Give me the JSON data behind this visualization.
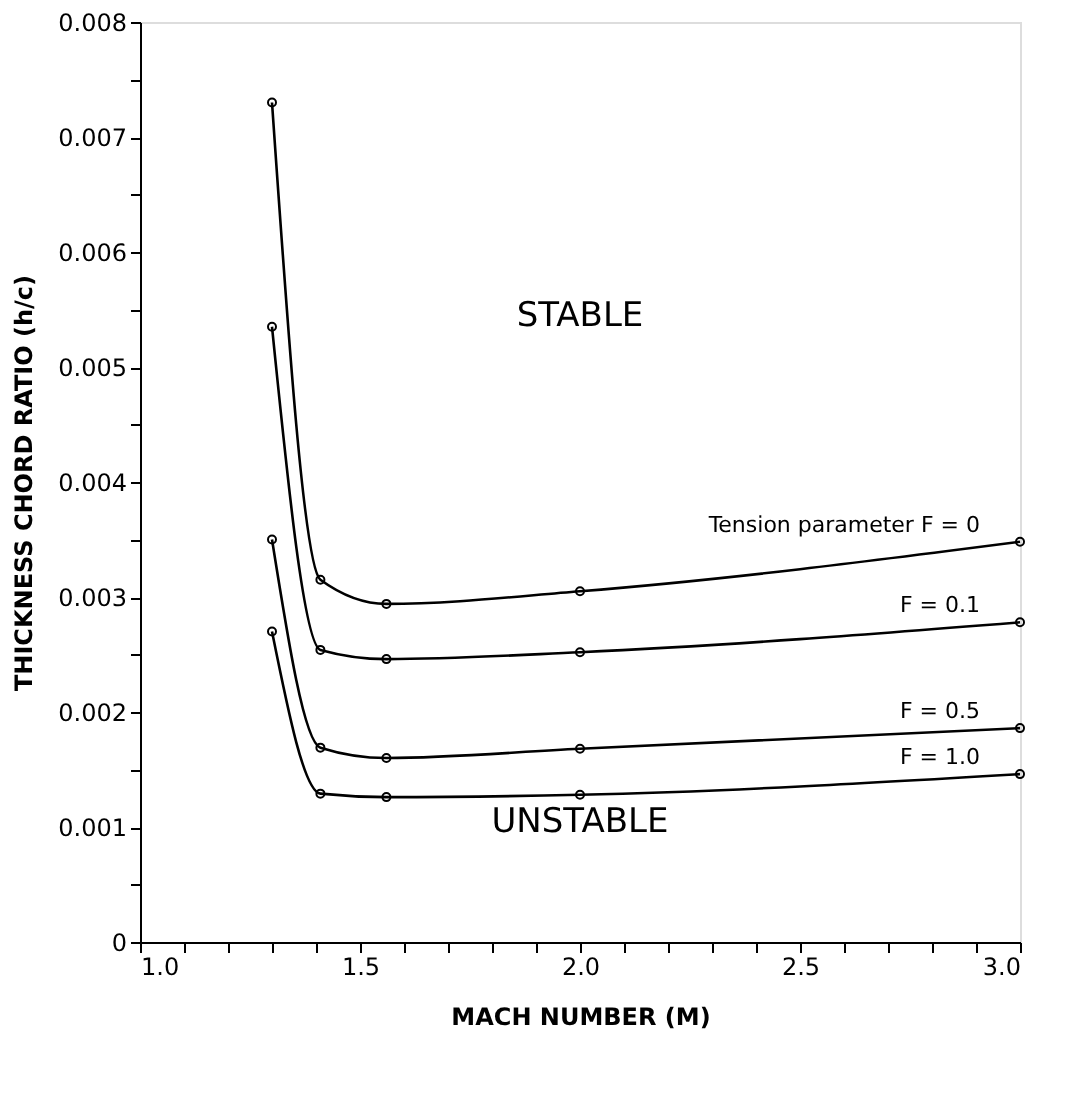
{
  "chart_data": {
    "type": "line",
    "xlabel": "MACH NUMBER (M)",
    "ylabel": "THICKNESS CHORD RATIO (h/c)",
    "xlim": [
      1.0,
      3.0
    ],
    "xticks": [
      {
        "value": 1.0,
        "label": "1.0"
      },
      {
        "value": 1.1,
        "label": null
      },
      {
        "value": 1.2,
        "label": null
      },
      {
        "value": 1.3,
        "label": null
      },
      {
        "value": 1.4,
        "label": null
      },
      {
        "value": 1.5,
        "label": "1.5"
      },
      {
        "value": 1.6,
        "label": null
      },
      {
        "value": 1.7,
        "label": null
      },
      {
        "value": 1.8,
        "label": null
      },
      {
        "value": 1.9,
        "label": null
      },
      {
        "value": 2.0,
        "label": "2.0"
      },
      {
        "value": 2.1,
        "label": null
      },
      {
        "value": 2.2,
        "label": null
      },
      {
        "value": 2.3,
        "label": null
      },
      {
        "value": 2.4,
        "label": null
      },
      {
        "value": 2.5,
        "label": "2.5"
      },
      {
        "value": 2.6,
        "label": null
      },
      {
        "value": 2.7,
        "label": null
      },
      {
        "value": 2.8,
        "label": null
      },
      {
        "value": 2.9,
        "label": null
      },
      {
        "value": 3.0,
        "label": "3.0"
      }
    ],
    "ylim": [
      0,
      0.008
    ],
    "yticks": [
      0,
      {
        "value": 0.0005,
        "label": null
      },
      0.001,
      {
        "value": 0.0015,
        "label": null
      },
      0.002,
      {
        "value": 0.0025,
        "label": null
      },
      0.003,
      {
        "value": 0.0035,
        "label": null
      },
      0.004,
      {
        "value": 0.0045,
        "label": null
      },
      0.005,
      {
        "value": 0.0055,
        "label": null
      },
      0.006,
      {
        "value": 0.0065,
        "label": null
      },
      0.007,
      {
        "value": 0.0075,
        "label": null
      },
      0.008
    ],
    "grid": false,
    "legend": false,
    "marker": "circle",
    "line_style": "solid",
    "annotations": [
      "STABLE",
      "UNSTABLE"
    ],
    "series": [
      {
        "name": "Tension parameter F = 0",
        "color": "#000000",
        "x": [
          1.3,
          1.41,
          1.56,
          2.0,
          3.0
        ],
        "values": [
          0.0073,
          0.00315,
          0.00294,
          0.00305,
          0.00348
        ]
      },
      {
        "name": "F = 0.1",
        "color": "#000000",
        "x": [
          1.3,
          1.41,
          1.56,
          2.0,
          3.0
        ],
        "values": [
          0.00535,
          0.00254,
          0.00246,
          0.00252,
          0.00278
        ]
      },
      {
        "name": "F = 0.5",
        "color": "#000000",
        "x": [
          1.3,
          1.41,
          1.56,
          2.0,
          3.0
        ],
        "values": [
          0.0035,
          0.00169,
          0.0016,
          0.00168,
          0.00186
        ]
      },
      {
        "name": "F = 1.0",
        "color": "#000000",
        "x": [
          1.3,
          1.41,
          1.56,
          2.0,
          3.0
        ],
        "values": [
          0.0027,
          0.00129,
          0.00126,
          0.00128,
          0.00146
        ]
      }
    ]
  }
}
